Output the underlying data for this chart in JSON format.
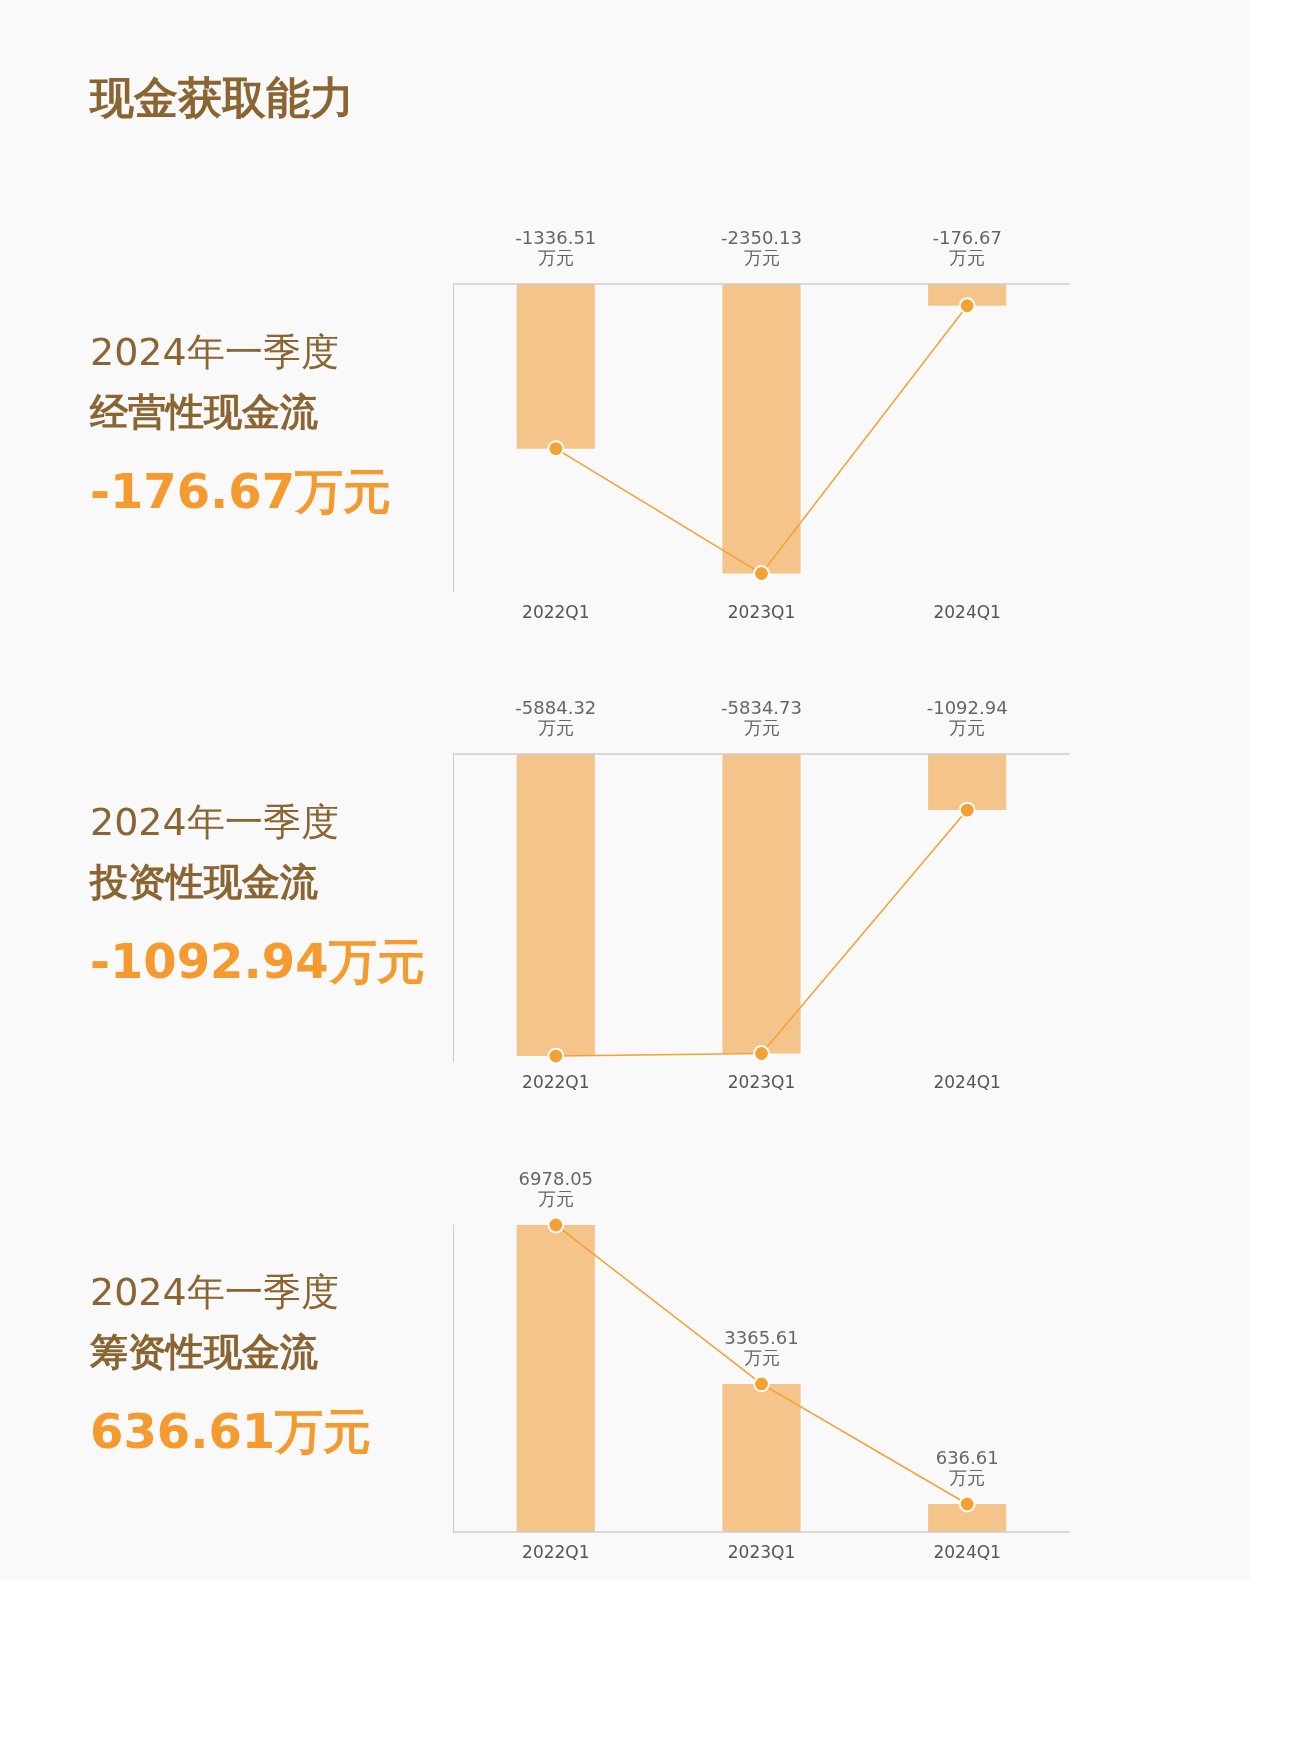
{
  "chart_data": [
    {
      "type": "other",
      "title": "现金获取能力"
    },
    {
      "type": "bar",
      "title": "2024年一季度",
      "subtitle": "经营性现金流",
      "annotations": [
        "-176.67万元"
      ],
      "categories": [
        "2022Q1",
        "2023Q1",
        "2024Q1"
      ],
      "ylim": [
        -2500,
        0
      ],
      "tick_labels": "x",
      "grid": false,
      "series": [
        {
          "type": "bar",
          "color": "#f5c48a",
          "values": [
            -1336.51,
            -2350.13,
            -176.67
          ],
          "value_labels": [
            "-1336.51 万元",
            "-2350.13 万元",
            "-176.67 万元"
          ]
        },
        {
          "type": "line",
          "color": "#f5a033",
          "marker": "circle",
          "values": [
            -1336.51,
            -2350.13,
            -176.67
          ]
        }
      ]
    },
    {
      "type": "bar",
      "title": "2024年一季度",
      "subtitle": "投资性现金流",
      "annotations": [
        "-1092.94万元"
      ],
      "categories": [
        "2022Q1",
        "2023Q1",
        "2024Q1"
      ],
      "ylim": [
        -6000,
        0
      ],
      "tick_labels": "x",
      "grid": false,
      "series": [
        {
          "type": "bar",
          "color": "#f5c48a",
          "values": [
            -5884.32,
            -5834.73,
            -1092.94
          ],
          "value_labels": [
            "-5884.32 万元",
            "-5834.73 万元",
            "-1092.94 万元"
          ]
        },
        {
          "type": "line",
          "color": "#f5a033",
          "marker": "circle",
          "values": [
            -5884.32,
            -5834.73,
            -1092.94
          ]
        }
      ]
    },
    {
      "type": "bar",
      "title": "2024年一季度",
      "subtitle": "筹资性现金流",
      "annotations": [
        "636.61万元"
      ],
      "categories": [
        "2022Q1",
        "2023Q1",
        "2024Q1"
      ],
      "ylim": [
        0,
        7000
      ],
      "tick_labels": "x",
      "grid": false,
      "series": [
        {
          "type": "bar",
          "color": "#f5c48a",
          "values": [
            6978.05,
            3365.61,
            636.61
          ],
          "value_labels": [
            "6978.05 万元",
            "3365.61 万元",
            "636.61 万元"
          ]
        },
        {
          "type": "line",
          "color": "#f5a033",
          "marker": "circle",
          "values": [
            6978.05,
            3365.61,
            636.61
          ]
        }
      ]
    }
  ]
}
